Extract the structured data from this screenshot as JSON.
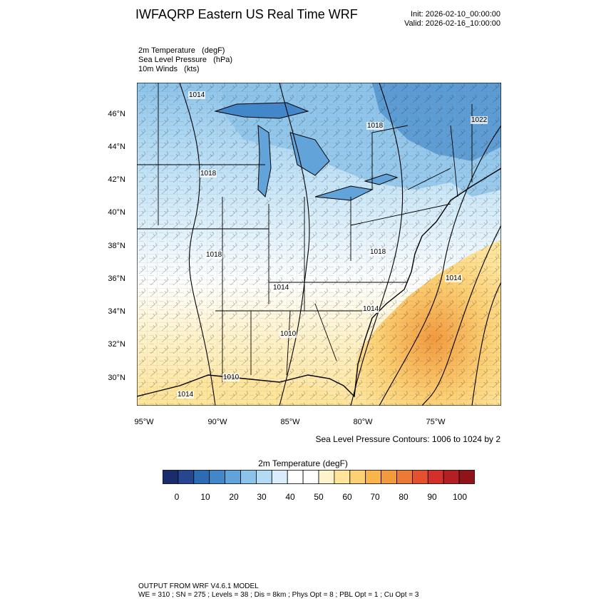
{
  "header": {
    "title": "IWFAQRP Eastern US Real Time WRF",
    "init": "Init: 2026-02-10_00:00:00",
    "valid": "Valid: 2026-02-16_10:00:00"
  },
  "fields": [
    "2m Temperature   (degF)",
    "Sea Level Pressure   (hPa)",
    "10m Winds   (kts)"
  ],
  "map": {
    "lat_ticks": [
      "46°N",
      "44°N",
      "42°N",
      "40°N",
      "38°N",
      "36°N",
      "34°N",
      "32°N",
      "30°N"
    ],
    "lon_ticks": [
      "95°W",
      "90°W",
      "85°W",
      "80°W",
      "75°W"
    ],
    "pressure_labels": [
      "1014",
      "1018",
      "1022",
      "1018",
      "1018",
      "1018",
      "1014",
      "1014",
      "1014",
      "1010",
      "1010",
      "1014"
    ]
  },
  "contour_note": "Sea Level Pressure Contours: 1006 to 1024 by 2",
  "colorbar": {
    "title": "2m Temperature  (degF)",
    "colors": [
      "#1b2c6b",
      "#26468f",
      "#2e6bb5",
      "#4287c9",
      "#62a4d9",
      "#8cc3ea",
      "#b3dbf4",
      "#d9eefa",
      "#ffffff",
      "#ffffff",
      "#fff3cc",
      "#ffe49a",
      "#fdd073",
      "#f9b44c",
      "#f29a3d",
      "#ec7a34",
      "#e5512d",
      "#d32f2b",
      "#b51f24",
      "#8f1419"
    ],
    "ticks": [
      "0",
      "10",
      "20",
      "30",
      "40",
      "50",
      "60",
      "70",
      "80",
      "90",
      "100"
    ]
  },
  "footer": {
    "line1": "OUTPUT FROM WRF V4.6.1 MODEL",
    "line2": "WE = 310 ; SN = 275 ; Levels = 38 ; Dis = 8km ; Phys Opt = 8 ; PBL Opt = 1 ; Cu Opt = 3"
  }
}
